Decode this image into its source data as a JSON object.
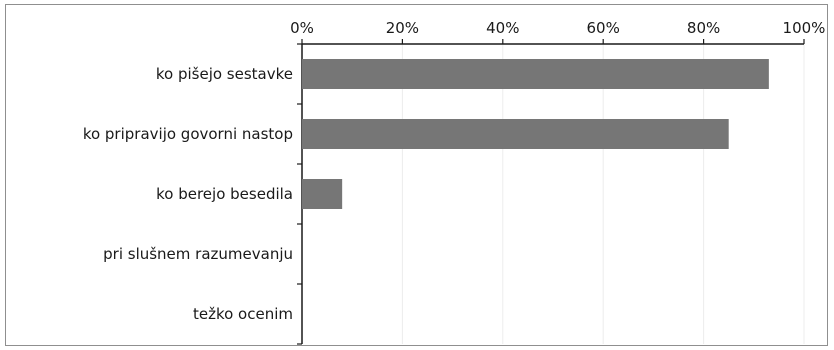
{
  "chart_data": {
    "type": "bar",
    "orientation": "horizontal",
    "categories": [
      "ko pišejo sestavke",
      "ko pripravijo govorni nastop",
      "ko berejo besedila",
      "pri slušnem razumevanju",
      "težko ocenim"
    ],
    "values": [
      93,
      85,
      8,
      0,
      0
    ],
    "x_ticks": [
      "0%",
      "20%",
      "40%",
      "60%",
      "80%",
      "100%"
    ],
    "xlim": [
      0,
      100
    ],
    "x_axis_position": "top",
    "grid": true,
    "bar_color": "#767676",
    "grid_color": "#ececec",
    "axis_color": "#1a1a1a"
  }
}
